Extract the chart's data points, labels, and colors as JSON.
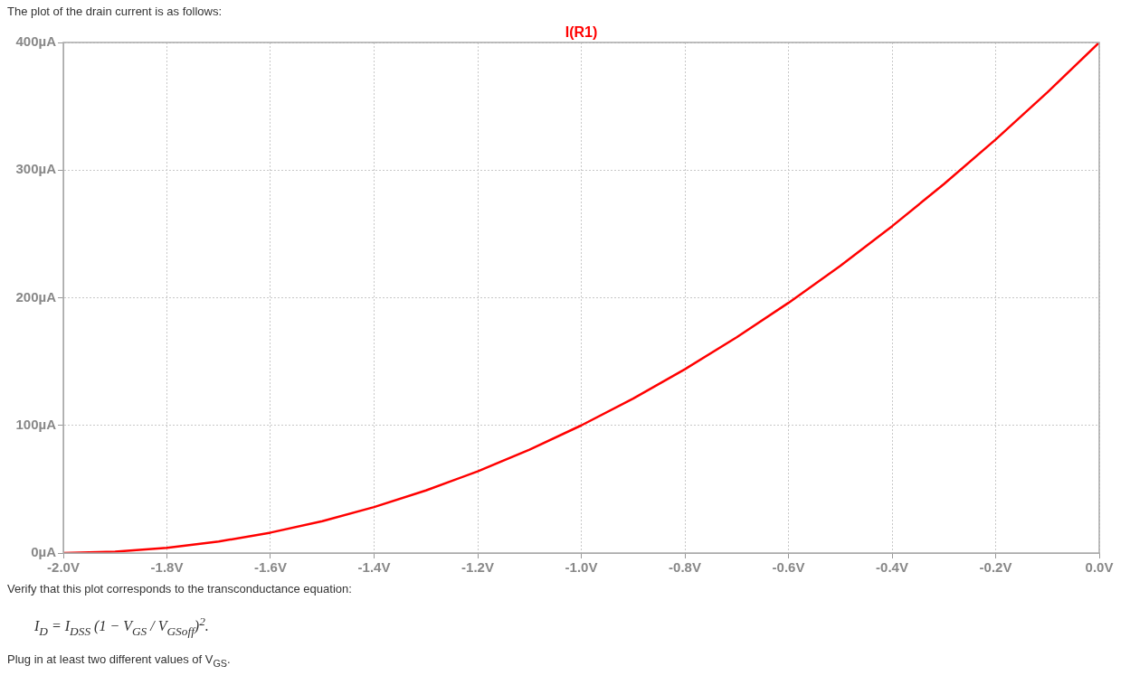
{
  "chart_data": {
    "type": "line",
    "x": [
      -2.0,
      -1.9,
      -1.8,
      -1.7,
      -1.6,
      -1.5,
      -1.4,
      -1.3,
      -1.2,
      -1.1,
      -1.0,
      -0.9,
      -0.8,
      -0.7,
      -0.6,
      -0.5,
      -0.4,
      -0.3,
      -0.2,
      -0.1,
      0.0
    ],
    "series": [
      {
        "name": "I(R1)",
        "color": "#ff0000",
        "values": [
          0,
          1,
          4,
          9,
          16,
          25,
          36,
          49,
          64,
          81,
          100,
          121,
          144,
          169,
          196,
          225,
          256,
          289,
          324,
          361,
          400
        ]
      }
    ],
    "xlim": [
      -2.0,
      0.0
    ],
    "xticks": [
      {
        "value": -2.0,
        "label": "-2.0V"
      },
      {
        "value": -1.8,
        "label": "-1.8V"
      },
      {
        "value": -1.6,
        "label": "-1.6V"
      },
      {
        "value": -1.4,
        "label": "-1.4V"
      },
      {
        "value": -1.2,
        "label": "-1.2V"
      },
      {
        "value": -1.0,
        "label": "-1.0V"
      },
      {
        "value": -0.8,
        "label": "-0.8V"
      },
      {
        "value": -0.6,
        "label": "-0.6V"
      },
      {
        "value": -0.4,
        "label": "-0.4V"
      },
      {
        "value": -0.2,
        "label": "-0.2V"
      },
      {
        "value": 0.0,
        "label": "0.0V"
      }
    ],
    "ylim": [
      0,
      400
    ],
    "yticks": [
      {
        "value": 0,
        "label": "0µA"
      },
      {
        "value": 100,
        "label": "100µA"
      },
      {
        "value": 200,
        "label": "200µA"
      },
      {
        "value": 300,
        "label": "300µA"
      },
      {
        "value": 400,
        "label": "400µA"
      }
    ],
    "grid": true,
    "marker": "none",
    "line_style": "solid",
    "annotations": [
      "The plot of the drain current is as follows:",
      "Verify that this plot corresponds to the transconductance equation:",
      "I$_{D}$ = I$_{DSS}$ (1 − V$_{GS}$ / V$_{GSoff}$)$^{2}$.",
      "Plug in at least two different values of V$_{GS}$."
    ]
  }
}
